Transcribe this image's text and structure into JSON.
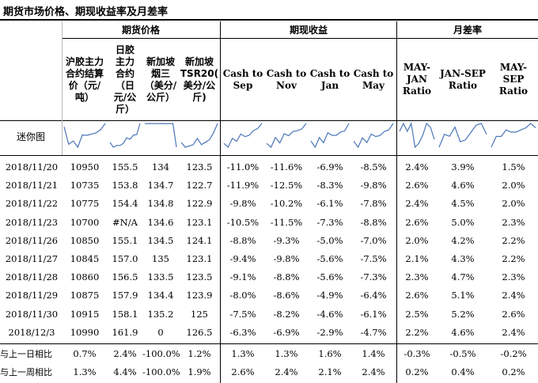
{
  "title": "期货市场价格、期现收益率及月差率",
  "groups": {
    "futures": "期货价格",
    "spot_return": "期现收益",
    "monthly_spread": "月差率"
  },
  "column_headers": [
    [
      "沪胶主力",
      "合约结算",
      "价（元/",
      "吨）"
    ],
    [
      "日胶",
      "主力",
      "合约",
      "（日",
      "元/公",
      "斤）"
    ],
    [
      "新加坡",
      "烟三",
      "（美分/",
      "公斤）"
    ],
    [
      "新加坡",
      "TSR20(",
      "美分/公",
      "斤)"
    ],
    [
      "Cash to",
      "Sep"
    ],
    [
      "Cash to",
      "Nov"
    ],
    [
      "Cash to",
      "Jan"
    ],
    [
      "Cash to",
      "May"
    ],
    [
      "MAY-",
      "JAN",
      "Ratio"
    ],
    [
      "JAN-SEP",
      "Ratio"
    ],
    [
      "MAY-",
      "SEP",
      "Ratio"
    ]
  ],
  "sparkline_label": "迷你图",
  "accent_color": "#4a76b8",
  "rows": [
    {
      "date": "2018/11/20",
      "values": [
        "10950",
        "155.5",
        "134",
        "123.5",
        "-11.0%",
        "-11.6%",
        "-6.9%",
        "-8.5%",
        "2.4%",
        "3.9%",
        "1.5%"
      ]
    },
    {
      "date": "2018/11/21",
      "values": [
        "10735",
        "153.8",
        "134.7",
        "122.7",
        "-11.9%",
        "-12.5%",
        "-8.3%",
        "-9.8%",
        "2.6%",
        "4.6%",
        "2.0%"
      ]
    },
    {
      "date": "2018/11/22",
      "values": [
        "10775",
        "154.4",
        "134.8",
        "122.9",
        "-9.8%",
        "-10.2%",
        "-6.1%",
        "-7.8%",
        "2.4%",
        "4.5%",
        "2.0%"
      ]
    },
    {
      "date": "2018/11/23",
      "values": [
        "10700",
        "#N/A",
        "134.6",
        "123.1",
        "-10.5%",
        "-11.5%",
        "-7.3%",
        "-8.8%",
        "2.6%",
        "5.0%",
        "2.3%"
      ]
    },
    {
      "date": "2018/11/26",
      "values": [
        "10850",
        "155.1",
        "134.5",
        "124.1",
        "-8.8%",
        "-9.3%",
        "-5.0%",
        "-7.0%",
        "2.0%",
        "4.2%",
        "2.2%"
      ]
    },
    {
      "date": "2018/11/27",
      "values": [
        "10845",
        "157.0",
        "135",
        "123.1",
        "-9.4%",
        "-9.8%",
        "-5.6%",
        "-7.5%",
        "2.1%",
        "4.3%",
        "2.2%"
      ]
    },
    {
      "date": "2018/11/28",
      "values": [
        "10860",
        "156.5",
        "133.5",
        "123.5",
        "-9.1%",
        "-8.8%",
        "-5.6%",
        "-7.3%",
        "2.3%",
        "4.7%",
        "2.3%"
      ]
    },
    {
      "date": "2018/11/29",
      "values": [
        "10875",
        "157.9",
        "134.4",
        "123.9",
        "-8.0%",
        "-8.6%",
        "-4.9%",
        "-6.4%",
        "2.6%",
        "5.1%",
        "2.4%"
      ]
    },
    {
      "date": "2018/11/30",
      "values": [
        "10915",
        "158.1",
        "135.2",
        "125",
        "-7.5%",
        "-8.2%",
        "-4.6%",
        "-6.1%",
        "2.5%",
        "5.2%",
        "2.6%"
      ]
    },
    {
      "date": "2018/12/3",
      "values": [
        "10990",
        "161.9",
        "0",
        "126.5",
        "-6.3%",
        "-6.9%",
        "-2.9%",
        "-4.7%",
        "2.2%",
        "4.6%",
        "2.4%"
      ]
    }
  ],
  "summary_rows": [
    {
      "label": "与上一日相比",
      "values": [
        "0.7%",
        "2.4%",
        "-100.0%",
        "1.2%",
        "1.3%",
        "1.3%",
        "1.6%",
        "1.4%",
        "-0.3%",
        "-0.5%",
        "-0.2%"
      ]
    },
    {
      "label": "与上一周相比",
      "values": [
        "1.3%",
        "4.4%",
        "-100.0%",
        "1.9%",
        "2.6%",
        "2.4%",
        "2.1%",
        "2.4%",
        "0.2%",
        "0.4%",
        "0.2%"
      ]
    }
  ]
}
